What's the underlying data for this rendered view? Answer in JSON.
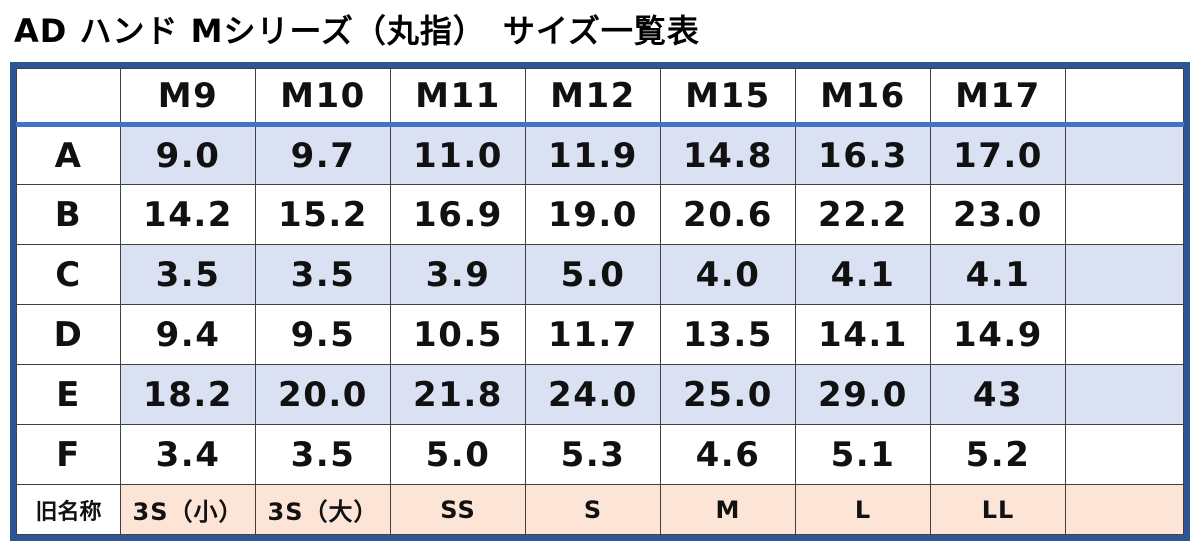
{
  "title": "AD ハンド Mシリーズ（丸指）　サイズ一覧表",
  "colors": {
    "outer_border": "#2F5597",
    "header_divider": "#4472C4",
    "row_blue": "#D9E1F2",
    "row_peach": "#FCE4D6",
    "grid_line": "#404040"
  },
  "table": {
    "columns": [
      "",
      "M9",
      "M10",
      "M11",
      "M12",
      "M15",
      "M16",
      "M17",
      ""
    ],
    "rows": [
      {
        "label": "A",
        "shade": "blue",
        "small": false,
        "values": [
          "9.0",
          "9.7",
          "11.0",
          "11.9",
          "14.8",
          "16.3",
          "17.0",
          ""
        ]
      },
      {
        "label": "B",
        "shade": "white",
        "small": false,
        "values": [
          "14.2",
          "15.2",
          "16.9",
          "19.0",
          "20.6",
          "22.2",
          "23.0",
          ""
        ]
      },
      {
        "label": "C",
        "shade": "blue",
        "small": false,
        "values": [
          "3.5",
          "3.5",
          "3.9",
          "5.0",
          "4.0",
          "4.1",
          "4.1",
          ""
        ]
      },
      {
        "label": "D",
        "shade": "white",
        "small": false,
        "values": [
          "9.4",
          "9.5",
          "10.5",
          "11.7",
          "13.5",
          "14.1",
          "14.9",
          ""
        ]
      },
      {
        "label": "E",
        "shade": "blue",
        "small": false,
        "values": [
          "18.2",
          "20.0",
          "21.8",
          "24.0",
          "25.0",
          "29.0",
          "43",
          ""
        ]
      },
      {
        "label": "F",
        "shade": "white",
        "small": false,
        "values": [
          "3.4",
          "3.5",
          "5.0",
          "5.3",
          "4.6",
          "5.1",
          "5.2",
          ""
        ]
      },
      {
        "label": "旧名称",
        "shade": "peach",
        "small": true,
        "values": [
          "3S（小）",
          "3S（大）",
          "SS",
          "S",
          "M",
          "L",
          "LL",
          ""
        ]
      }
    ]
  }
}
